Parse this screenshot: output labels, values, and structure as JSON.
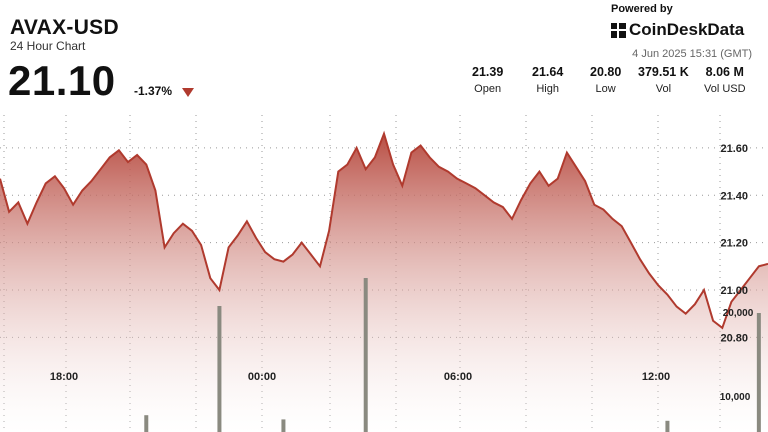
{
  "header": {
    "title": "AVAX-USD",
    "subtitle": "24 Hour Chart",
    "price": "21.10",
    "change": "-1.37%"
  },
  "branding": {
    "powered_by": "Powered by",
    "brand": "CoinDeskData",
    "timestamp": "4 Jun 2025 15:31 (GMT)"
  },
  "stats": [
    {
      "value": "21.39",
      "label": "Open"
    },
    {
      "value": "21.64",
      "label": "High"
    },
    {
      "value": "20.80",
      "label": "Low"
    },
    {
      "value": "379.51 K",
      "label": "Vol"
    },
    {
      "value": "8.06 M",
      "label": "Vol USD"
    }
  ],
  "colors": {
    "line": "#b03a2e",
    "fill_top": "#b5453a",
    "fill_bottom": "#ffffff",
    "volume": "#8a8a80",
    "grid": "#999999"
  },
  "chart_data": {
    "type": "area",
    "title": "AVAX-USD",
    "grid": true,
    "x_ticks": [
      "18:00",
      "00:00",
      "06:00",
      "12:00"
    ],
    "y_ticks": [
      "21.60",
      "21.40",
      "21.20",
      "21.00",
      "20.80"
    ],
    "ylim": [
      20.62,
      21.76
    ],
    "price": [
      21.47,
      21.33,
      21.37,
      21.28,
      21.37,
      21.45,
      21.48,
      21.43,
      21.36,
      21.42,
      21.46,
      21.51,
      21.56,
      21.59,
      21.54,
      21.57,
      21.53,
      21.42,
      21.18,
      21.24,
      21.28,
      21.25,
      21.19,
      21.05,
      21.0,
      21.18,
      21.23,
      21.29,
      21.22,
      21.16,
      21.13,
      21.12,
      21.15,
      21.2,
      21.15,
      21.1,
      21.25,
      21.5,
      21.53,
      21.6,
      21.51,
      21.56,
      21.66,
      21.53,
      21.44,
      21.58,
      21.61,
      21.56,
      21.52,
      21.5,
      21.47,
      21.45,
      21.43,
      21.4,
      21.37,
      21.35,
      21.3,
      21.38,
      21.45,
      21.5,
      21.44,
      21.47,
      21.58,
      21.52,
      21.46,
      21.36,
      21.34,
      21.3,
      21.27,
      21.2,
      21.13,
      21.07,
      21.02,
      20.98,
      20.93,
      20.9,
      20.94,
      21.0,
      20.87,
      20.84,
      20.95,
      21.0,
      21.05,
      21.1,
      21.11
    ],
    "volume": [
      0,
      0,
      0,
      0,
      0,
      0,
      0,
      0,
      0,
      0,
      0,
      0,
      0,
      0,
      0,
      0,
      12000,
      0,
      0,
      0,
      0,
      0,
      0,
      0,
      90000,
      0,
      0,
      0,
      0,
      0,
      0,
      9000,
      0,
      0,
      0,
      0,
      0,
      0,
      0,
      0,
      110000,
      0,
      0,
      0,
      0,
      0,
      0,
      0,
      0,
      0,
      0,
      0,
      0,
      0,
      0,
      0,
      0,
      0,
      0,
      0,
      0,
      0,
      0,
      0,
      0,
      0,
      0,
      0,
      0,
      0,
      0,
      0,
      0,
      8000,
      0,
      0,
      0,
      0,
      0,
      0,
      0,
      0,
      0,
      85000,
      0,
      60000
    ]
  }
}
